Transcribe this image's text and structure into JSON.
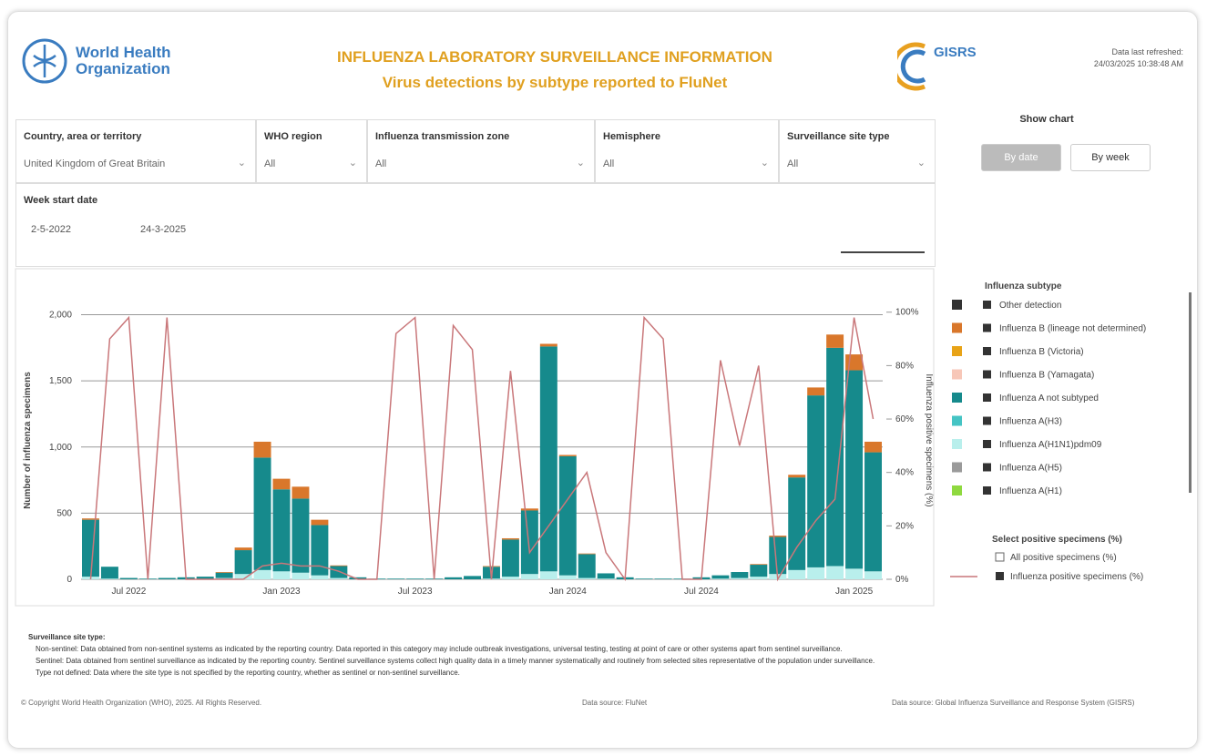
{
  "header": {
    "org_line1": "World Health",
    "org_line2": "Organization",
    "title": "INFLUENZA LABORATORY SURVEILLANCE INFORMATION",
    "subtitle": "Virus detections by subtype reported to FluNet",
    "gisrs": "GISRS",
    "updated_line1": "Data last refreshed:",
    "updated_line2": "24/03/2025 10:38:48 AM"
  },
  "filters": [
    {
      "label": "Country, area or territory",
      "value": "United Kingdom of Great Britain"
    },
    {
      "label": "WHO region",
      "value": "All"
    },
    {
      "label": "Influenza transmission zone",
      "value": "All"
    },
    {
      "label": "Hemisphere",
      "value": "All"
    },
    {
      "label": "Surveillance site type",
      "value": "All"
    }
  ],
  "date": {
    "label": "Week start date",
    "start": "2-5-2022",
    "end": "24-3-2025"
  },
  "show_chart": {
    "label": "Show chart",
    "options": [
      "By date",
      "By week"
    ]
  },
  "chart_data": {
    "type": "bar",
    "stacked": true,
    "ylabel": "Number of influenza specimens",
    "y2label": "Influenza positive specimens (%)",
    "legend_title": "Influenza subtype",
    "line_legend_title": "Select positive specimens (%)",
    "other_line_options": [
      "All positive specimens (%)"
    ],
    "categories": [
      null,
      null,
      "Jul 2022",
      null,
      null,
      null,
      null,
      null,
      null,
      null,
      "Jan 2023",
      null,
      null,
      null,
      null,
      null,
      null,
      "Jul 2023",
      null,
      null,
      null,
      null,
      null,
      null,
      null,
      "Jan 2024",
      null,
      null,
      null,
      null,
      null,
      null,
      "Jul 2024",
      null,
      null,
      null,
      null,
      null,
      null,
      null,
      "Jan 2025",
      null
    ],
    "ylim": [
      0,
      2100
    ],
    "yticks": [
      0,
      {
        "value": 500,
        "label": "500"
      },
      {
        "value": 1000,
        "label": "1,000"
      },
      {
        "value": 1500,
        "label": "1,500"
      },
      {
        "value": 2000,
        "label": "2,000"
      }
    ],
    "y2lim": [
      0,
      104
    ],
    "y2ticks": [
      {
        "value": 0,
        "label": "0%"
      },
      {
        "value": 20,
        "label": "20%"
      },
      {
        "value": 40,
        "label": "40%"
      },
      {
        "value": 60,
        "label": "60%"
      },
      {
        "value": 80,
        "label": "80%"
      },
      {
        "value": 100,
        "label": "100%"
      }
    ],
    "grid": true,
    "series": [
      {
        "name": "Influenza A(H1N1)pdm09",
        "color": "#b9efec",
        "values": [
          20,
          5,
          0,
          0,
          0,
          0,
          0,
          10,
          40,
          70,
          60,
          50,
          30,
          10,
          0,
          0,
          0,
          0,
          0,
          0,
          0,
          5,
          20,
          40,
          60,
          30,
          10,
          5,
          0,
          0,
          0,
          0,
          0,
          5,
          10,
          20,
          40,
          70,
          90,
          100,
          80,
          60
        ]
      },
      {
        "name": "Influenza A not subtyped",
        "color": "#168a8c",
        "values": [
          430,
          90,
          10,
          5,
          10,
          15,
          20,
          40,
          180,
          850,
          620,
          560,
          380,
          90,
          15,
          5,
          5,
          5,
          5,
          15,
          25,
          90,
          280,
          480,
          1700,
          900,
          180,
          40,
          15,
          5,
          5,
          5,
          15,
          25,
          45,
          90,
          280,
          700,
          1300,
          1650,
          1500,
          900
        ]
      },
      {
        "name": "Influenza B (lineage not determined)",
        "color": "#d9772b",
        "values": [
          10,
          0,
          0,
          0,
          0,
          0,
          0,
          5,
          20,
          120,
          80,
          90,
          40,
          5,
          0,
          0,
          0,
          0,
          0,
          0,
          0,
          5,
          10,
          15,
          20,
          10,
          5,
          0,
          0,
          0,
          0,
          0,
          0,
          0,
          0,
          5,
          10,
          20,
          60,
          100,
          120,
          80
        ]
      },
      {
        "name": "Influenza B (Victoria)",
        "color": "#e8a317",
        "values": [
          0,
          0,
          0,
          0,
          0,
          0,
          0,
          0,
          0,
          0,
          0,
          0,
          0,
          0,
          0,
          0,
          0,
          0,
          0,
          0,
          0,
          0,
          0,
          0,
          0,
          0,
          0,
          0,
          0,
          0,
          0,
          0,
          0,
          0,
          0,
          0,
          0,
          0,
          0,
          0,
          0,
          0
        ]
      },
      {
        "name": "Influenza B (Yamagata)",
        "color": "#f7c7b8",
        "values": [
          0,
          0,
          0,
          0,
          0,
          0,
          0,
          0,
          0,
          0,
          0,
          0,
          0,
          0,
          0,
          0,
          0,
          0,
          0,
          0,
          0,
          0,
          0,
          0,
          0,
          0,
          0,
          0,
          0,
          0,
          0,
          0,
          0,
          0,
          0,
          0,
          0,
          0,
          0,
          0,
          0,
          0
        ]
      },
      {
        "name": "Influenza A(H3)",
        "color": "#45c4c4",
        "values": [
          0,
          0,
          0,
          0,
          0,
          0,
          0,
          0,
          0,
          0,
          0,
          0,
          0,
          0,
          0,
          0,
          0,
          0,
          0,
          0,
          0,
          0,
          0,
          0,
          0,
          0,
          0,
          0,
          0,
          0,
          0,
          0,
          0,
          0,
          0,
          0,
          0,
          0,
          0,
          0,
          0,
          0
        ]
      },
      {
        "name": "Influenza A(H5)",
        "color": "#9a9a9a",
        "values": [
          0,
          0,
          0,
          0,
          0,
          0,
          0,
          0,
          0,
          0,
          0,
          0,
          0,
          0,
          0,
          0,
          0,
          0,
          0,
          0,
          0,
          0,
          0,
          0,
          0,
          0,
          0,
          0,
          0,
          0,
          0,
          0,
          0,
          0,
          0,
          0,
          0,
          0,
          0,
          0,
          0,
          0
        ]
      },
      {
        "name": "Influenza A(H1)",
        "color": "#8fd93f",
        "values": [
          0,
          0,
          0,
          0,
          0,
          0,
          0,
          0,
          0,
          0,
          0,
          0,
          0,
          0,
          0,
          0,
          0,
          0,
          0,
          0,
          0,
          0,
          0,
          0,
          0,
          0,
          0,
          0,
          0,
          0,
          0,
          0,
          0,
          0,
          0,
          0,
          0,
          0,
          0,
          0,
          0,
          0
        ]
      },
      {
        "name": "Other detection",
        "color": "#333333",
        "values": [
          0,
          0,
          0,
          0,
          0,
          0,
          0,
          0,
          0,
          0,
          0,
          0,
          0,
          0,
          0,
          0,
          0,
          0,
          0,
          0,
          0,
          0,
          0,
          0,
          0,
          0,
          0,
          0,
          0,
          0,
          0,
          0,
          0,
          0,
          0,
          0,
          0,
          0,
          0,
          0,
          0,
          0
        ]
      },
      {
        "name": "Influenza positive specimens (%)",
        "color": "#c9777a",
        "type": "line",
        "axis": "y2",
        "values": [
          0,
          90,
          98,
          0,
          98,
          0,
          0,
          0,
          0,
          5,
          6,
          5,
          5,
          3,
          0,
          0,
          92,
          98,
          0,
          95,
          86,
          0,
          78,
          10,
          20,
          30,
          40,
          10,
          0,
          98,
          90,
          0,
          0,
          82,
          50,
          80,
          0,
          12,
          22,
          30,
          98,
          60
        ]
      }
    ]
  },
  "notes": {
    "heading": "Surveillance site type:",
    "items": [
      "Non-sentinel: Data obtained from non-sentinel systems as indicated by the reporting country. Data reported in this category may include outbreak investigations, universal testing, testing at point of care or other systems apart from sentinel surveillance.",
      "Sentinel: Data obtained from sentinel surveillance as indicated by the reporting country. Sentinel surveillance systems collect high quality data in a timely manner systematically and routinely from selected sites representative of the population under surveillance.",
      "Type not defined: Data where the site type is not specified by the reporting country, whether as sentinel or non-sentinel surveillance."
    ]
  },
  "footer": {
    "left": "© Copyright World Health Organization (WHO), 2025. All Rights Reserved.",
    "center": "Data source: FluNet",
    "right": "Data source: Global Influenza Surveillance and Response System (GISRS)"
  }
}
